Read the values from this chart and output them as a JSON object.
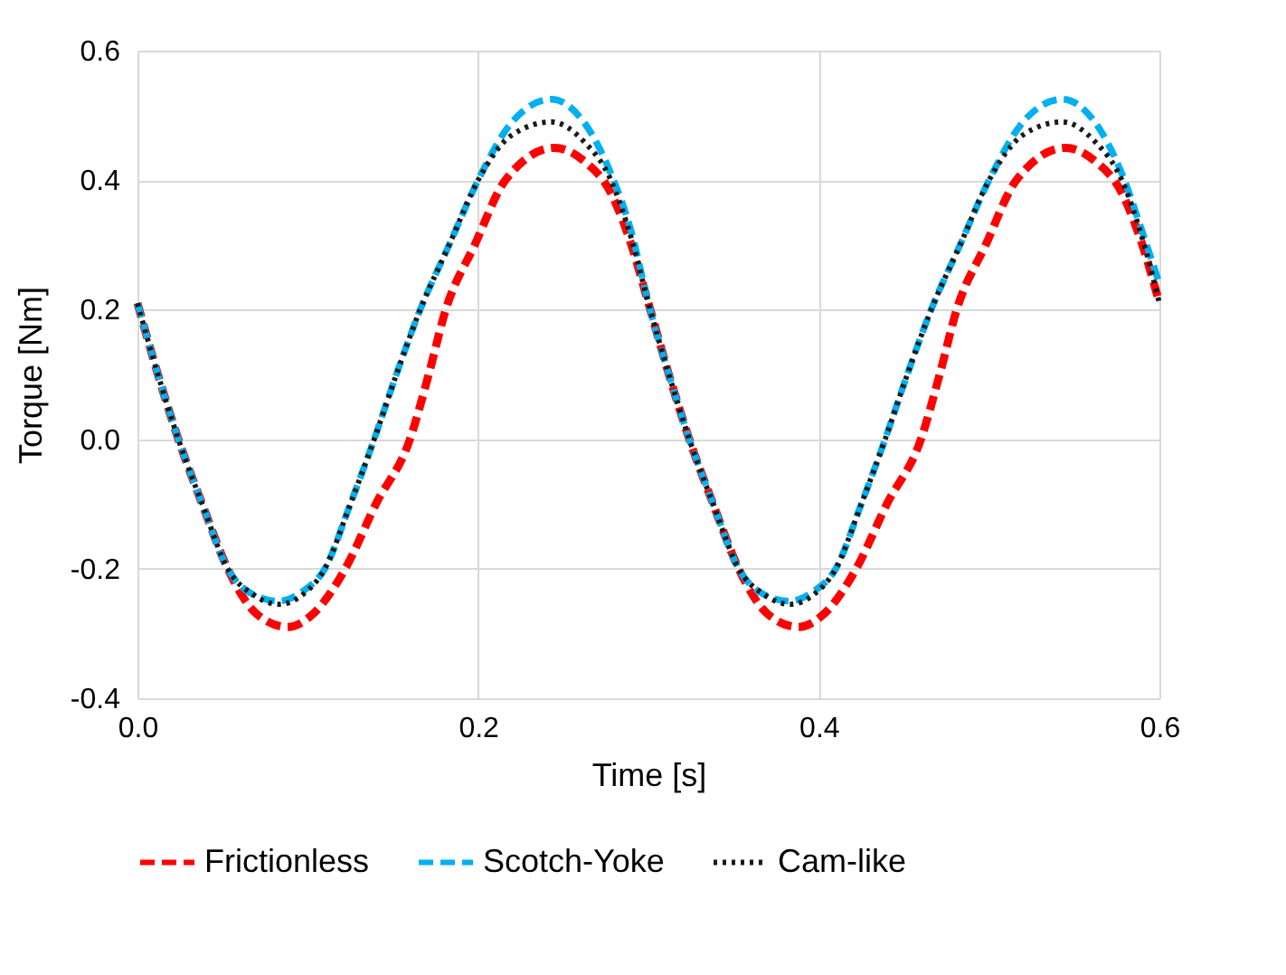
{
  "chart_data": {
    "type": "line",
    "xlabel": "Time [s]",
    "ylabel": "Torque [Nm]",
    "xlim": [
      0,
      0.6
    ],
    "xticks": [
      {
        "value": 0,
        "label": "0.0"
      },
      {
        "value": 0.2,
        "label": "0.2"
      },
      {
        "value": 0.4,
        "label": "0.4"
      },
      {
        "value": 0.6,
        "label": "0.6"
      }
    ],
    "ylim": [
      -0.4,
      0.6
    ],
    "yticks": [
      -0.4,
      -0.2,
      {
        "value": 0,
        "label": "0.0"
      },
      0.2,
      0.4,
      0.6
    ],
    "grid": true,
    "legend": "bottom",
    "series": [
      {
        "name": "Frictionless",
        "color": "#ff0000",
        "line_style": "dashed",
        "x": [
          0,
          0.012,
          0.024,
          0.038,
          0.053,
          0.07,
          0.088,
          0.103,
          0.122,
          0.14,
          0.16,
          0.171,
          0.181,
          0.198,
          0.216,
          0.245,
          0.262,
          0.278,
          0.29,
          0.3,
          0.312,
          0.324,
          0.338,
          0.353,
          0.37,
          0.388,
          0.403,
          0.422,
          0.44,
          0.46,
          0.471,
          0.481,
          0.498,
          0.516,
          0.545,
          0.562,
          0.578,
          0.59,
          0.6
        ],
        "values": [
          0.21,
          0.1,
          0.0,
          -0.1,
          -0.2,
          -0.27,
          -0.29,
          -0.27,
          -0.2,
          -0.1,
          0.0,
          0.1,
          0.2,
          0.3,
          0.4,
          0.45,
          0.43,
          0.38,
          0.3,
          0.21,
          0.1,
          0.0,
          -0.1,
          -0.2,
          -0.27,
          -0.29,
          -0.27,
          -0.2,
          -0.1,
          0.0,
          0.1,
          0.2,
          0.3,
          0.4,
          0.45,
          0.43,
          0.38,
          0.3,
          0.21
        ]
      },
      {
        "name": "Scotch-Yoke",
        "color": "#00b0f0",
        "line_style": "dashed",
        "x": [
          0,
          0.012,
          0.024,
          0.038,
          0.053,
          0.068,
          0.083,
          0.097,
          0.11,
          0.125,
          0.139,
          0.152,
          0.166,
          0.183,
          0.2,
          0.22,
          0.243,
          0.262,
          0.278,
          0.29,
          0.3,
          0.312,
          0.324,
          0.338,
          0.353,
          0.368,
          0.383,
          0.397,
          0.41,
          0.425,
          0.439,
          0.452,
          0.466,
          0.483,
          0.5,
          0.52,
          0.543,
          0.562,
          0.578,
          0.59,
          0.6
        ],
        "values": [
          0.21,
          0.1,
          0.0,
          -0.1,
          -0.2,
          -0.24,
          -0.25,
          -0.235,
          -0.2,
          -0.1,
          0.0,
          0.1,
          0.2,
          0.3,
          0.4,
          0.49,
          0.525,
          0.49,
          0.41,
          0.32,
          0.21,
          0.1,
          0.0,
          -0.1,
          -0.2,
          -0.24,
          -0.25,
          -0.235,
          -0.2,
          -0.1,
          0.0,
          0.1,
          0.2,
          0.3,
          0.4,
          0.49,
          0.525,
          0.49,
          0.41,
          0.32,
          0.24
        ]
      },
      {
        "name": "Cam-like",
        "color": "#1a1a1a",
        "line_style": "dotted",
        "x": [
          0,
          0.012,
          0.024,
          0.038,
          0.053,
          0.068,
          0.083,
          0.097,
          0.11,
          0.125,
          0.139,
          0.152,
          0.166,
          0.183,
          0.2,
          0.22,
          0.243,
          0.262,
          0.278,
          0.29,
          0.3,
          0.312,
          0.324,
          0.338,
          0.353,
          0.368,
          0.383,
          0.397,
          0.41,
          0.425,
          0.439,
          0.452,
          0.466,
          0.483,
          0.5,
          0.52,
          0.543,
          0.562,
          0.578,
          0.59,
          0.6
        ],
        "values": [
          0.21,
          0.1,
          0.0,
          -0.1,
          -0.2,
          -0.24,
          -0.255,
          -0.24,
          -0.2,
          -0.1,
          0.0,
          0.1,
          0.2,
          0.3,
          0.4,
          0.47,
          0.49,
          0.46,
          0.4,
          0.31,
          0.21,
          0.1,
          0.0,
          -0.1,
          -0.2,
          -0.24,
          -0.255,
          -0.24,
          -0.2,
          -0.1,
          0.0,
          0.1,
          0.2,
          0.3,
          0.4,
          0.47,
          0.49,
          0.46,
          0.4,
          0.31,
          0.21
        ]
      }
    ]
  }
}
